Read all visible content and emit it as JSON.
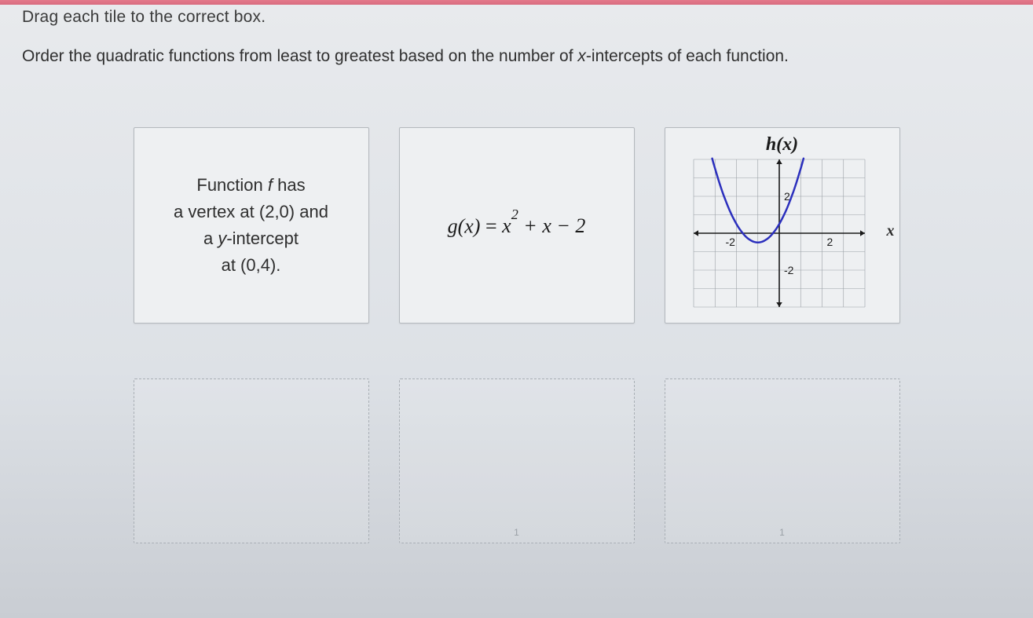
{
  "instructions": {
    "line1": "Drag each tile to the correct box.",
    "line2_pre": "Order the quadratic functions from least to greatest based on the number of ",
    "line2_var": "x",
    "line2_post": "-intercepts of each function."
  },
  "tiles": {
    "f": {
      "line1_pre": "Function ",
      "line1_var": "f",
      "line1_post": " has",
      "line2": "a vertex at (2,0) and",
      "line3_pre": "a ",
      "line3_var": "y",
      "line3_post": "-intercept",
      "line4": "at (0,4)."
    },
    "g": {
      "formula_lhs": "g(x)",
      "formula_rhs": "x² + x − 2"
    },
    "h": {
      "title": "h(x)",
      "x_label": "x",
      "chart": {
        "type": "scatter-line",
        "xlim": [
          -4,
          4
        ],
        "ylim": [
          -4,
          4
        ],
        "tick_step": 2,
        "tick_labels_x": [
          -2,
          2
        ],
        "tick_labels_y": [
          -2,
          2
        ],
        "grid_step": 1,
        "grid_color": "#9aa0a6",
        "axis_color": "#1a1a1a",
        "curve_color": "#2b2fbd",
        "curve_width": 2.5,
        "background_color": "#eef0f2",
        "parabola": {
          "a": 1.0,
          "h": -1.0,
          "k": -0.5
        },
        "label_fontsize": 14,
        "label_color": "#1a1a1a",
        "arrow_size": 6
      }
    }
  },
  "dropzones": {
    "markers": [
      "",
      "1",
      "1"
    ]
  },
  "colors": {
    "page_bg_top": "#e8eaed",
    "page_bg_bottom": "#c9cdd3",
    "tile_bg": "#eef0f2",
    "tile_border": "#b3b8bd",
    "dash_border": "#a9afb5",
    "text": "#2b2b2b"
  }
}
